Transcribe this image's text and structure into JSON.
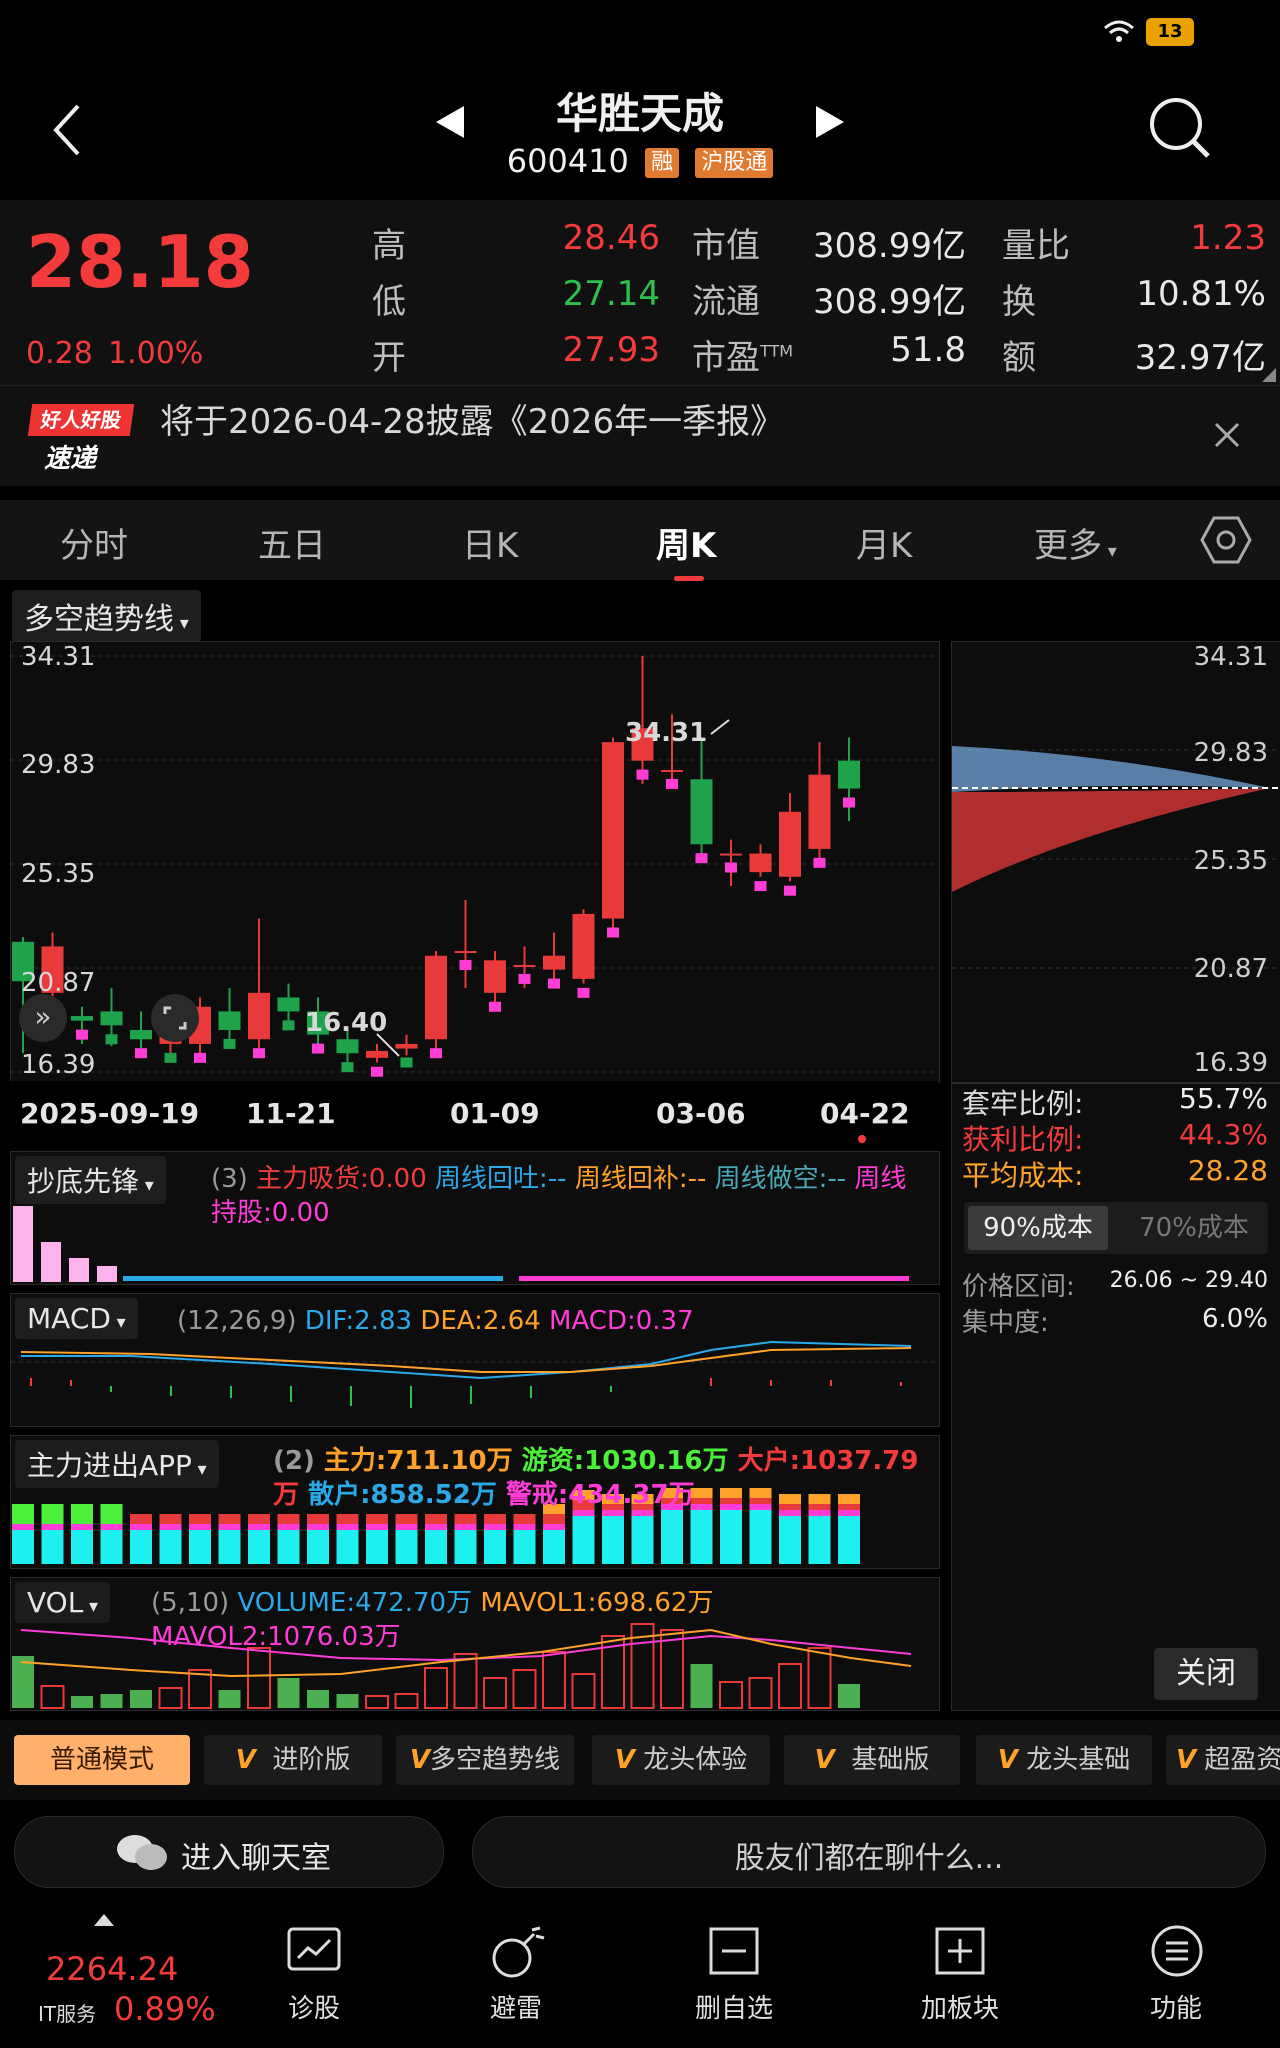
{
  "status_bar": {
    "battery": "13"
  },
  "header": {
    "title": "华胜天成",
    "code": "600410",
    "tags": [
      "融",
      "沪股通"
    ]
  },
  "quote": {
    "price": "28.18",
    "change": "0.28",
    "change_pct": "1.00%",
    "rows": [
      {
        "l1": "高",
        "v1": "28.46",
        "l2": "市值",
        "v2": "308.99亿",
        "l3": "量比",
        "v3": "1.23"
      },
      {
        "l1": "低",
        "v1": "27.14",
        "l2": "流通",
        "v2": "308.99亿",
        "l3": "换",
        "v3": "10.81%"
      },
      {
        "l1": "开",
        "v1": "27.93",
        "l2": "市盈",
        "l2sup": "TTM",
        "v2": "51.8",
        "l3": "额",
        "v3": "32.97亿"
      }
    ]
  },
  "notice": {
    "logo_top": "好人好股",
    "logo_bottom": "速递",
    "text": "将于2026-04-28披露《2026年一季报》"
  },
  "tabs": [
    "分时",
    "五日",
    "日K",
    "周K",
    "月K",
    "更多"
  ],
  "active_tab": "周K",
  "main_chart": {
    "indicator": "多空趋势线",
    "y_ticks": [
      "34.31",
      "29.83",
      "25.35",
      "20.87",
      "16.39"
    ],
    "x_ticks": [
      "2025-09-19",
      "11-21",
      "01-09",
      "03-06",
      "04-22"
    ],
    "high_label": "34.31",
    "low_label": "16.40"
  },
  "chart_data": {
    "type": "candlestick",
    "ylim": [
      16.39,
      34.31
    ],
    "candles": [
      {
        "o": 22.0,
        "c": 20.3,
        "h": 22.2,
        "l": 17.2
      },
      {
        "o": 19.8,
        "c": 21.8,
        "h": 22.4,
        "l": 18.0
      },
      {
        "o": 18.8,
        "c": 18.6,
        "h": 19.2,
        "l": 17.6
      },
      {
        "o": 19.0,
        "c": 18.4,
        "h": 20.0,
        "l": 17.5
      },
      {
        "o": 18.2,
        "c": 17.8,
        "h": 19.0,
        "l": 17.0
      },
      {
        "o": 17.6,
        "c": 18.8,
        "h": 19.2,
        "l": 16.8
      },
      {
        "o": 17.6,
        "c": 19.2,
        "h": 19.6,
        "l": 17.2
      },
      {
        "o": 19.0,
        "c": 18.2,
        "h": 20.0,
        "l": 17.6
      },
      {
        "o": 17.8,
        "c": 19.8,
        "h": 23.0,
        "l": 17.4
      },
      {
        "o": 19.6,
        "c": 19.0,
        "h": 20.2,
        "l": 18.6
      },
      {
        "o": 19.0,
        "c": 18.0,
        "h": 19.6,
        "l": 17.4
      },
      {
        "o": 17.8,
        "c": 17.2,
        "h": 18.2,
        "l": 16.6
      },
      {
        "o": 17.0,
        "c": 17.3,
        "h": 17.6,
        "l": 16.8
      },
      {
        "o": 17.4,
        "c": 17.6,
        "h": 18.0,
        "l": 17.1
      },
      {
        "o": 17.8,
        "c": 21.4,
        "h": 21.6,
        "l": 17.4
      },
      {
        "o": 21.6,
        "c": 21.6,
        "h": 23.8,
        "l": 20.0
      },
      {
        "o": 19.8,
        "c": 21.2,
        "h": 21.6,
        "l": 19.4
      },
      {
        "o": 21.0,
        "c": 21.0,
        "h": 21.8,
        "l": 20.0
      },
      {
        "o": 20.8,
        "c": 21.4,
        "h": 22.4,
        "l": 20.2
      },
      {
        "o": 20.4,
        "c": 23.2,
        "h": 23.4,
        "l": 20.2
      },
      {
        "o": 23.0,
        "c": 30.6,
        "h": 30.8,
        "l": 22.6
      },
      {
        "o": 29.8,
        "c": 31.2,
        "h": 34.31,
        "l": 28.8
      },
      {
        "o": 29.4,
        "c": 29.4,
        "h": 31.8,
        "l": 28.6
      },
      {
        "o": 29.0,
        "c": 26.2,
        "h": 30.8,
        "l": 25.8
      },
      {
        "o": 25.8,
        "c": 25.8,
        "h": 26.4,
        "l": 24.4
      },
      {
        "o": 25.0,
        "c": 25.8,
        "h": 26.2,
        "l": 24.8
      },
      {
        "o": 24.8,
        "c": 27.6,
        "h": 28.4,
        "l": 24.6
      },
      {
        "o": 26.0,
        "c": 29.2,
        "h": 30.6,
        "l": 25.6
      },
      {
        "o": 29.8,
        "c": 28.6,
        "h": 30.8,
        "l": 27.2
      }
    ]
  },
  "chip_panel": {
    "y_ticks": [
      "34.31",
      "29.83",
      "25.35",
      "20.87",
      "16.39"
    ],
    "stats": [
      {
        "label": "套牢比例:",
        "value": "55.7%"
      },
      {
        "label": "获利比例:",
        "value": "44.3%"
      },
      {
        "label": "平均成本:",
        "value": "28.28"
      }
    ],
    "cost_tabs": [
      "90%成本",
      "70%成本"
    ],
    "range_label": "价格区间:",
    "range_value": "26.06 ~ 29.40",
    "conc_label": "集中度:",
    "conc_value": "6.0%",
    "close": "关闭"
  },
  "ind1": {
    "name": "抄底先锋",
    "params": "(3)",
    "t1": "主力吸货:0.00",
    "t2": "周线回吐:--",
    "t3": "周线回补:--",
    "t4": "周线做空:--",
    "t5": "周线持股:0.00"
  },
  "macd": {
    "name": "MACD",
    "params": "(12,26,9)",
    "dif": "DIF:2.83",
    "dea": "DEA:2.64",
    "macd": "MACD:0.37"
  },
  "fund": {
    "name": "主力进出APP",
    "params": "(2)",
    "zhuli": "主力:711.10万",
    "youzi": "游资:1030.16万",
    "dahu": "大户:1037.79万",
    "sanhu": "散户:858.52万",
    "jingjie": "警戒:434.37万"
  },
  "vol": {
    "name": "VOL",
    "params": "(5,10)",
    "volume": "VOLUME:472.70万",
    "mavol1": "MAVOL1:698.62万",
    "mavol2": "MAVOL2:1076.03万"
  },
  "modes": [
    "普通模式",
    "进阶版",
    "多空趋势线",
    "龙头体验",
    "基础版",
    "龙头基础",
    "超盈资"
  ],
  "chat": {
    "left": "进入聊天室",
    "right": "股友们都在聊什么..."
  },
  "index": {
    "value": "2264.24",
    "name": "IT服务",
    "pct": "0.89%"
  },
  "nav": [
    "诊股",
    "避雷",
    "删自选",
    "加板块",
    "功能"
  ]
}
